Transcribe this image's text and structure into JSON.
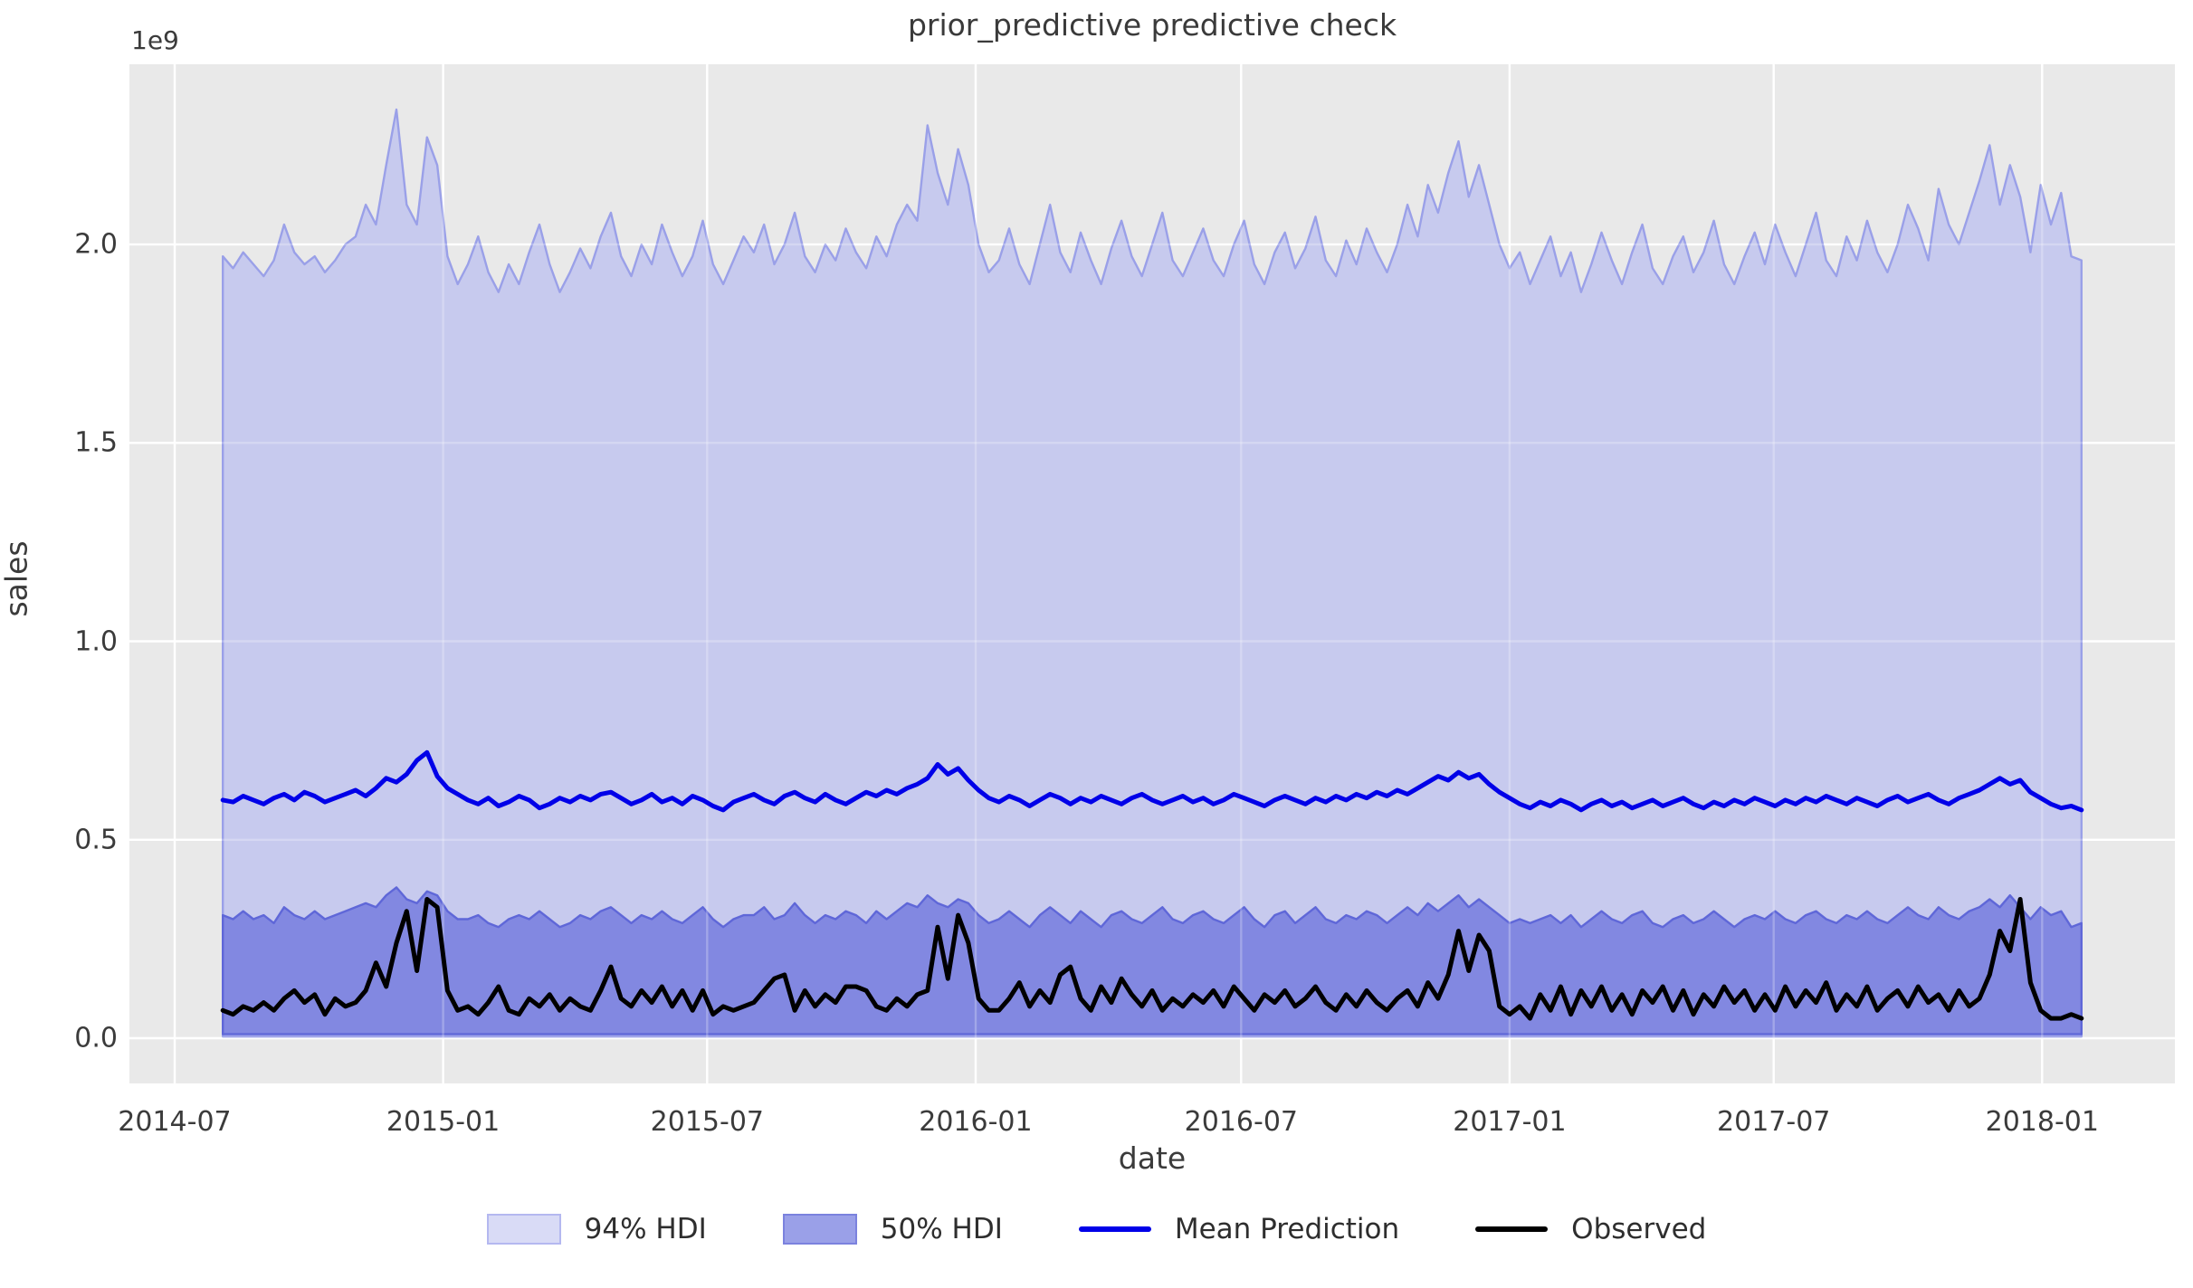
{
  "chart_data": {
    "type": "area+line",
    "title": "prior_predictive predictive check",
    "xlabel": "date",
    "ylabel": "sales",
    "offset_text": "1e9",
    "unit": "1e9",
    "x_start_date": "2014-08-03",
    "x_interval_days": 7,
    "n_points": 183,
    "xlim": [
      "2014-05-31",
      "2018-04-02"
    ],
    "ylim": [
      -0.114,
      2.454
    ],
    "grid": true,
    "legend_position": "bottom-center",
    "x_ticks": [
      {
        "label": "2014-07",
        "date": "2014-07-01"
      },
      {
        "label": "2015-01",
        "date": "2015-01-01"
      },
      {
        "label": "2015-07",
        "date": "2015-07-01"
      },
      {
        "label": "2016-01",
        "date": "2016-01-01"
      },
      {
        "label": "2016-07",
        "date": "2016-07-01"
      },
      {
        "label": "2017-01",
        "date": "2017-01-01"
      },
      {
        "label": "2017-07",
        "date": "2017-07-01"
      },
      {
        "label": "2018-01",
        "date": "2018-01-01"
      }
    ],
    "y_ticks": [
      {
        "label": "0.0",
        "value": 0.0
      },
      {
        "label": "0.5",
        "value": 0.5
      },
      {
        "label": "1.0",
        "value": 1.0
      },
      {
        "label": "1.5",
        "value": 1.5
      },
      {
        "label": "2.0",
        "value": 2.0
      }
    ],
    "legend": [
      {
        "label": "94% HDI",
        "type": "patch",
        "swatch_fill": "#d9dbf6",
        "swatch_border": "#b4b8f0"
      },
      {
        "label": "50% HDI",
        "type": "patch",
        "swatch_fill": "#9aa0e8",
        "swatch_border": "#7b82de"
      },
      {
        "label": "Mean Prediction",
        "type": "line",
        "line_color": "#0000e8"
      },
      {
        "label": "Observed",
        "type": "line",
        "line_color": "#000000"
      }
    ],
    "colors": {
      "plot_bg": "#e9e9e9",
      "grid": "#ffffff",
      "hdi94_fill": "#c7caee",
      "hdi94_edge": "#9aa0e8",
      "hdi50_fill": "#8288e1",
      "hdi50_edge": "#5f67d8",
      "mean_line": "#0000e8",
      "observed_line": "#000000",
      "text": "#3b3b3b"
    },
    "series": [
      {
        "name": "94% HDI upper",
        "values": [
          1.97,
          1.94,
          1.98,
          1.95,
          1.92,
          1.96,
          2.05,
          1.98,
          1.95,
          1.97,
          1.93,
          1.96,
          2.0,
          2.02,
          2.1,
          2.05,
          2.2,
          2.34,
          2.1,
          2.05,
          2.27,
          2.2,
          1.97,
          1.9,
          1.95,
          2.02,
          1.93,
          1.88,
          1.95,
          1.9,
          1.98,
          2.05,
          1.95,
          1.88,
          1.93,
          1.99,
          1.94,
          2.02,
          2.08,
          1.97,
          1.92,
          2.0,
          1.95,
          2.05,
          1.98,
          1.92,
          1.97,
          2.06,
          1.95,
          1.9,
          1.96,
          2.02,
          1.98,
          2.05,
          1.95,
          2.0,
          2.08,
          1.97,
          1.93,
          2.0,
          1.96,
          2.04,
          1.98,
          1.94,
          2.02,
          1.97,
          2.05,
          2.1,
          2.06,
          2.3,
          2.18,
          2.1,
          2.24,
          2.15,
          2.0,
          1.93,
          1.96,
          2.04,
          1.95,
          1.9,
          2.0,
          2.1,
          1.98,
          1.93,
          2.03,
          1.96,
          1.9,
          1.99,
          2.06,
          1.97,
          1.92,
          2.0,
          2.08,
          1.96,
          1.92,
          1.98,
          2.04,
          1.96,
          1.92,
          2.0,
          2.06,
          1.95,
          1.9,
          1.98,
          2.03,
          1.94,
          1.99,
          2.07,
          1.96,
          1.92,
          2.01,
          1.95,
          2.04,
          1.98,
          1.93,
          2.0,
          2.1,
          2.02,
          2.15,
          2.08,
          2.18,
          2.26,
          2.12,
          2.2,
          2.1,
          2.0,
          1.94,
          1.98,
          1.9,
          1.96,
          2.02,
          1.92,
          1.98,
          1.88,
          1.95,
          2.03,
          1.96,
          1.9,
          1.98,
          2.05,
          1.94,
          1.9,
          1.97,
          2.02,
          1.93,
          1.98,
          2.06,
          1.95,
          1.9,
          1.97,
          2.03,
          1.95,
          2.05,
          1.98,
          1.92,
          2.0,
          2.08,
          1.96,
          1.92,
          2.02,
          1.96,
          2.06,
          1.98,
          1.93,
          2.0,
          2.1,
          2.04,
          1.96,
          2.14,
          2.05,
          2.0,
          2.08,
          2.16,
          2.25,
          2.1,
          2.2,
          2.12,
          1.98,
          2.15,
          2.05,
          2.13,
          1.97,
          1.96
        ]
      },
      {
        "name": "94% HDI lower",
        "flat_value": 0.004
      },
      {
        "name": "50% HDI upper",
        "values": [
          0.31,
          0.3,
          0.32,
          0.3,
          0.31,
          0.29,
          0.33,
          0.31,
          0.3,
          0.32,
          0.3,
          0.31,
          0.32,
          0.33,
          0.34,
          0.33,
          0.36,
          0.38,
          0.35,
          0.34,
          0.37,
          0.36,
          0.32,
          0.3,
          0.3,
          0.31,
          0.29,
          0.28,
          0.3,
          0.31,
          0.3,
          0.32,
          0.3,
          0.28,
          0.29,
          0.31,
          0.3,
          0.32,
          0.33,
          0.31,
          0.29,
          0.31,
          0.3,
          0.32,
          0.3,
          0.29,
          0.31,
          0.33,
          0.3,
          0.28,
          0.3,
          0.31,
          0.31,
          0.33,
          0.3,
          0.31,
          0.34,
          0.31,
          0.29,
          0.31,
          0.3,
          0.32,
          0.31,
          0.29,
          0.32,
          0.3,
          0.32,
          0.34,
          0.33,
          0.36,
          0.34,
          0.33,
          0.35,
          0.34,
          0.31,
          0.29,
          0.3,
          0.32,
          0.3,
          0.28,
          0.31,
          0.33,
          0.31,
          0.29,
          0.32,
          0.3,
          0.28,
          0.31,
          0.32,
          0.3,
          0.29,
          0.31,
          0.33,
          0.3,
          0.29,
          0.31,
          0.32,
          0.3,
          0.29,
          0.31,
          0.33,
          0.3,
          0.28,
          0.31,
          0.32,
          0.29,
          0.31,
          0.33,
          0.3,
          0.29,
          0.31,
          0.3,
          0.32,
          0.31,
          0.29,
          0.31,
          0.33,
          0.31,
          0.34,
          0.32,
          0.34,
          0.36,
          0.33,
          0.35,
          0.33,
          0.31,
          0.29,
          0.3,
          0.29,
          0.3,
          0.31,
          0.29,
          0.31,
          0.28,
          0.3,
          0.32,
          0.3,
          0.29,
          0.31,
          0.32,
          0.29,
          0.28,
          0.3,
          0.31,
          0.29,
          0.3,
          0.32,
          0.3,
          0.28,
          0.3,
          0.31,
          0.3,
          0.32,
          0.3,
          0.29,
          0.31,
          0.32,
          0.3,
          0.29,
          0.31,
          0.3,
          0.32,
          0.3,
          0.29,
          0.31,
          0.33,
          0.31,
          0.3,
          0.33,
          0.31,
          0.3,
          0.32,
          0.33,
          0.35,
          0.33,
          0.36,
          0.33,
          0.3,
          0.33,
          0.31,
          0.32,
          0.28,
          0.29
        ]
      },
      {
        "name": "50% HDI lower",
        "flat_value": 0.01
      },
      {
        "name": "Mean Prediction",
        "values": [
          0.6,
          0.595,
          0.61,
          0.6,
          0.59,
          0.605,
          0.615,
          0.6,
          0.62,
          0.61,
          0.595,
          0.605,
          0.615,
          0.625,
          0.61,
          0.63,
          0.655,
          0.645,
          0.665,
          0.7,
          0.72,
          0.66,
          0.63,
          0.615,
          0.6,
          0.59,
          0.605,
          0.585,
          0.595,
          0.61,
          0.6,
          0.58,
          0.59,
          0.605,
          0.595,
          0.61,
          0.6,
          0.615,
          0.62,
          0.605,
          0.59,
          0.6,
          0.615,
          0.595,
          0.605,
          0.59,
          0.61,
          0.6,
          0.585,
          0.575,
          0.595,
          0.605,
          0.615,
          0.6,
          0.59,
          0.61,
          0.62,
          0.605,
          0.595,
          0.615,
          0.6,
          0.59,
          0.605,
          0.62,
          0.61,
          0.625,
          0.615,
          0.63,
          0.64,
          0.655,
          0.69,
          0.665,
          0.68,
          0.65,
          0.625,
          0.605,
          0.595,
          0.61,
          0.6,
          0.585,
          0.6,
          0.615,
          0.605,
          0.59,
          0.605,
          0.595,
          0.61,
          0.6,
          0.59,
          0.605,
          0.615,
          0.6,
          0.59,
          0.6,
          0.61,
          0.595,
          0.605,
          0.59,
          0.6,
          0.615,
          0.605,
          0.595,
          0.585,
          0.6,
          0.61,
          0.6,
          0.59,
          0.605,
          0.595,
          0.61,
          0.6,
          0.615,
          0.605,
          0.62,
          0.61,
          0.625,
          0.615,
          0.63,
          0.645,
          0.66,
          0.65,
          0.67,
          0.655,
          0.665,
          0.64,
          0.62,
          0.605,
          0.59,
          0.58,
          0.595,
          0.585,
          0.6,
          0.59,
          0.575,
          0.59,
          0.6,
          0.585,
          0.595,
          0.58,
          0.59,
          0.6,
          0.585,
          0.595,
          0.605,
          0.59,
          0.58,
          0.595,
          0.585,
          0.6,
          0.59,
          0.605,
          0.595,
          0.585,
          0.6,
          0.59,
          0.605,
          0.595,
          0.61,
          0.6,
          0.59,
          0.605,
          0.595,
          0.585,
          0.6,
          0.61,
          0.595,
          0.605,
          0.615,
          0.6,
          0.59,
          0.605,
          0.615,
          0.625,
          0.64,
          0.655,
          0.64,
          0.65,
          0.62,
          0.605,
          0.59,
          0.58,
          0.585,
          0.575
        ]
      },
      {
        "name": "Observed",
        "values": [
          0.07,
          0.06,
          0.08,
          0.07,
          0.09,
          0.07,
          0.1,
          0.12,
          0.09,
          0.11,
          0.06,
          0.1,
          0.08,
          0.09,
          0.12,
          0.19,
          0.13,
          0.24,
          0.32,
          0.17,
          0.35,
          0.33,
          0.12,
          0.07,
          0.08,
          0.06,
          0.09,
          0.13,
          0.07,
          0.06,
          0.1,
          0.08,
          0.11,
          0.07,
          0.1,
          0.08,
          0.07,
          0.12,
          0.18,
          0.1,
          0.08,
          0.12,
          0.09,
          0.13,
          0.08,
          0.12,
          0.07,
          0.12,
          0.06,
          0.08,
          0.07,
          0.08,
          0.09,
          0.12,
          0.15,
          0.16,
          0.07,
          0.12,
          0.08,
          0.11,
          0.09,
          0.13,
          0.13,
          0.12,
          0.08,
          0.07,
          0.1,
          0.08,
          0.11,
          0.12,
          0.28,
          0.15,
          0.31,
          0.24,
          0.1,
          0.07,
          0.07,
          0.1,
          0.14,
          0.08,
          0.12,
          0.09,
          0.16,
          0.18,
          0.1,
          0.07,
          0.13,
          0.09,
          0.15,
          0.11,
          0.08,
          0.12,
          0.07,
          0.1,
          0.08,
          0.11,
          0.09,
          0.12,
          0.08,
          0.13,
          0.1,
          0.07,
          0.11,
          0.09,
          0.12,
          0.08,
          0.1,
          0.13,
          0.09,
          0.07,
          0.11,
          0.08,
          0.12,
          0.09,
          0.07,
          0.1,
          0.12,
          0.08,
          0.14,
          0.1,
          0.16,
          0.27,
          0.17,
          0.26,
          0.22,
          0.08,
          0.06,
          0.08,
          0.05,
          0.11,
          0.07,
          0.13,
          0.06,
          0.12,
          0.08,
          0.13,
          0.07,
          0.11,
          0.06,
          0.12,
          0.09,
          0.13,
          0.07,
          0.12,
          0.06,
          0.11,
          0.08,
          0.13,
          0.09,
          0.12,
          0.07,
          0.11,
          0.07,
          0.13,
          0.08,
          0.12,
          0.09,
          0.14,
          0.07,
          0.11,
          0.08,
          0.13,
          0.07,
          0.1,
          0.12,
          0.08,
          0.13,
          0.09,
          0.11,
          0.07,
          0.12,
          0.08,
          0.1,
          0.16,
          0.27,
          0.22,
          0.35,
          0.14,
          0.07,
          0.05,
          0.05,
          0.06,
          0.05
        ]
      }
    ]
  }
}
